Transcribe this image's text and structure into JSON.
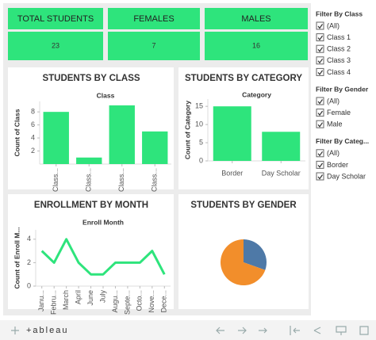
{
  "kpis": [
    {
      "label": "TOTAL STUDENTS",
      "value": 23
    },
    {
      "label": "FEMALES",
      "value": 7
    },
    {
      "label": "MALES",
      "value": 16
    }
  ],
  "chart_data": [
    {
      "type": "bar",
      "title": "STUDENTS BY CLASS",
      "x_label": "Class",
      "y_label": "Count of Class",
      "categories": [
        "Class...",
        "Class...",
        "Class...",
        "Class..."
      ],
      "values": [
        8,
        1,
        9,
        5
      ],
      "color": "#2ee47c",
      "ylim": [
        0,
        9.6
      ],
      "yticks": [
        2,
        4,
        6,
        8
      ],
      "rotate_labels": true
    },
    {
      "type": "bar",
      "title": "STUDENTS BY CATEGORY",
      "x_label": "Category",
      "y_label": "Count of Category",
      "categories": [
        "Border",
        "Day Scholar"
      ],
      "values": [
        15,
        8
      ],
      "color": "#2ee47c",
      "ylim": [
        0,
        17
      ],
      "yticks": [
        0,
        5,
        10,
        15
      ],
      "rotate_labels": false
    },
    {
      "type": "line",
      "title": "ENROLLMENT BY MONTH",
      "x_label": "Enroll Month",
      "y_label": "Count of Enroll M...",
      "categories": [
        "Janu...",
        "Febru...",
        "March",
        "April",
        "June",
        "July",
        "Augu...",
        "Septe...",
        "Octo...",
        "Nove...",
        "Dece..."
      ],
      "values": [
        3,
        2,
        4,
        2,
        1,
        1,
        2,
        2,
        2,
        3,
        1
      ],
      "color": "#2ee47c",
      "ylim": [
        0,
        4.8
      ],
      "yticks": [
        0,
        2,
        4
      ],
      "rotate_labels": true
    },
    {
      "type": "pie",
      "title": "STUDENTS BY GENDER",
      "values": [
        7,
        16
      ],
      "colors": [
        "#4e79a7",
        "#f28e2b"
      ]
    }
  ],
  "filters": [
    {
      "title": "Filter By Class",
      "options": [
        "(All)",
        "Class 1",
        "Class 2",
        "Class 3",
        "Class 4"
      ]
    },
    {
      "title": "Filter By Gender",
      "options": [
        "(All)",
        "Female",
        "Male"
      ]
    },
    {
      "title": "Filter By Categ...",
      "options": [
        "(All)",
        "Border",
        "Day Scholar"
      ]
    }
  ],
  "toolbar": {
    "logo": "+ableau"
  }
}
